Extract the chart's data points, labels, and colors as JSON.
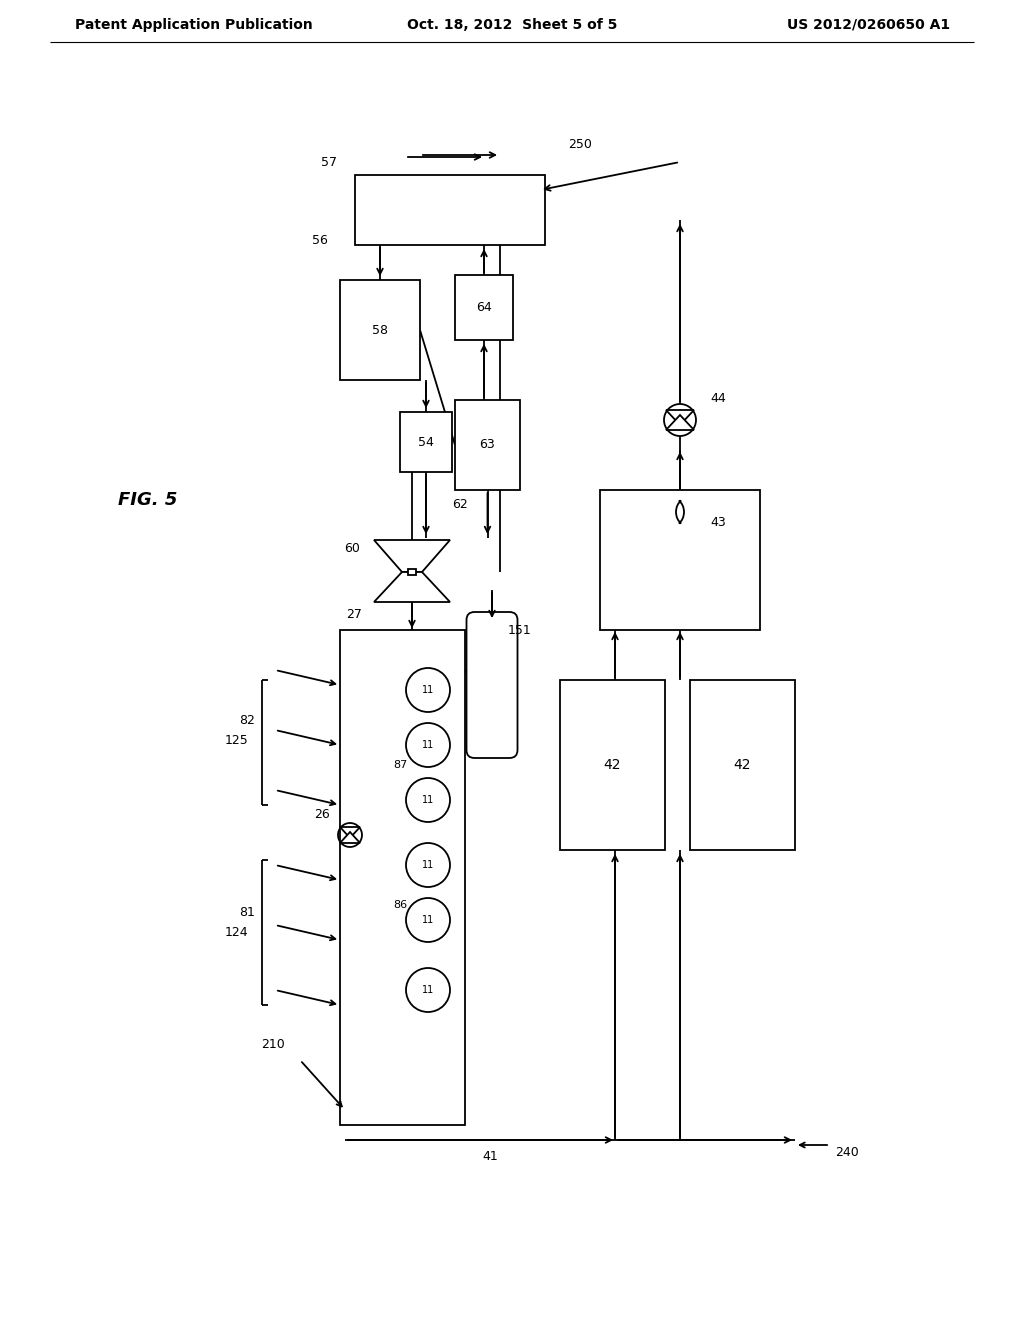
{
  "title_left": "Patent Application Publication",
  "title_mid": "Oct. 18, 2012  Sheet 5 of 5",
  "title_right": "US 2012/0260650 A1",
  "fig_label": "FIG. 5",
  "bg_color": "#ffffff",
  "line_color": "#000000",
  "font_size_header": 10,
  "font_size_label": 9,
  "font_size_fig": 12
}
